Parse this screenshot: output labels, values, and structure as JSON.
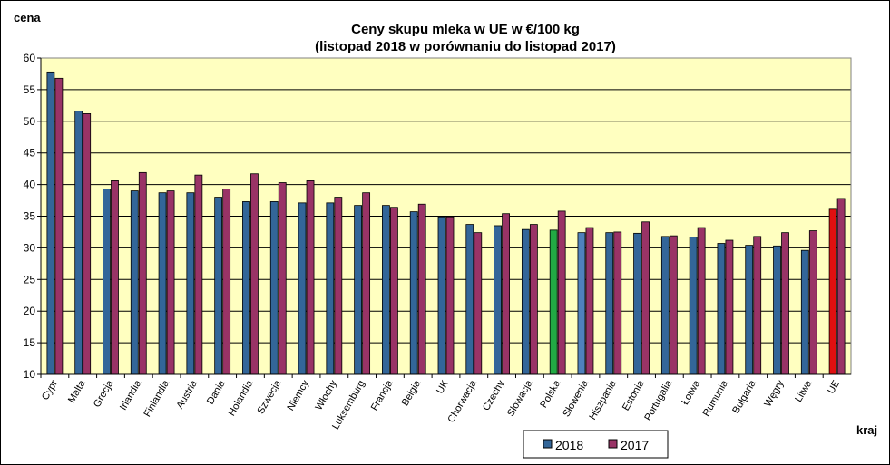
{
  "chart_data": {
    "type": "bar",
    "title": "Ceny skupu mleka  w UE w €/100 kg",
    "subtitle": "(listopad 2018 w porównaniu do listopad 2017)",
    "ylabel": "cena",
    "xlabel": "kraj",
    "ylim": [
      10,
      60
    ],
    "yticks": [
      10,
      15,
      20,
      25,
      30,
      35,
      40,
      45,
      50,
      55,
      60
    ],
    "grid": true,
    "legend_position": "bottom-center",
    "plot_background": "#FFFFC0",
    "categories": [
      "Cypr",
      "Malta",
      "Grecja",
      "Irlandia",
      "Finlandia",
      "Austria",
      "Dania",
      "Holandia",
      "Szwecja",
      "Niemcy",
      "Włochy",
      "Luksemburg",
      "Francja",
      "Belgia",
      "UK",
      "Chorwacja",
      "Czechy",
      "Słowacja",
      "Polska",
      "Słowenia",
      "Hiszpania",
      "Estonia",
      "Portugalia",
      "Łotwa",
      "Rumunia",
      "Bułgaria",
      "Węgry",
      "Litwa",
      "UE"
    ],
    "series": [
      {
        "name": "2018",
        "color": "#336699",
        "values": [
          57.8,
          51.6,
          39.3,
          39.0,
          38.7,
          38.7,
          38.0,
          37.3,
          37.3,
          37.1,
          37.1,
          36.7,
          36.7,
          35.7,
          34.9,
          33.7,
          33.5,
          32.9,
          32.8,
          32.4,
          32.4,
          32.3,
          31.8,
          31.7,
          30.7,
          30.4,
          30.3,
          29.6,
          36.1
        ],
        "highlight": {
          "Polska": "#22AA44",
          "Słowenia": "#4F81BD",
          "UE": "#E01010"
        }
      },
      {
        "name": "2017",
        "color": "#993366",
        "values": [
          56.8,
          51.2,
          40.6,
          41.9,
          39.0,
          41.5,
          39.3,
          41.7,
          40.3,
          40.6,
          38.0,
          38.7,
          36.4,
          36.9,
          34.9,
          32.4,
          35.4,
          33.7,
          35.8,
          33.2,
          32.5,
          34.1,
          31.9,
          33.2,
          31.2,
          31.8,
          32.4,
          32.7,
          37.8
        ]
      }
    ]
  }
}
